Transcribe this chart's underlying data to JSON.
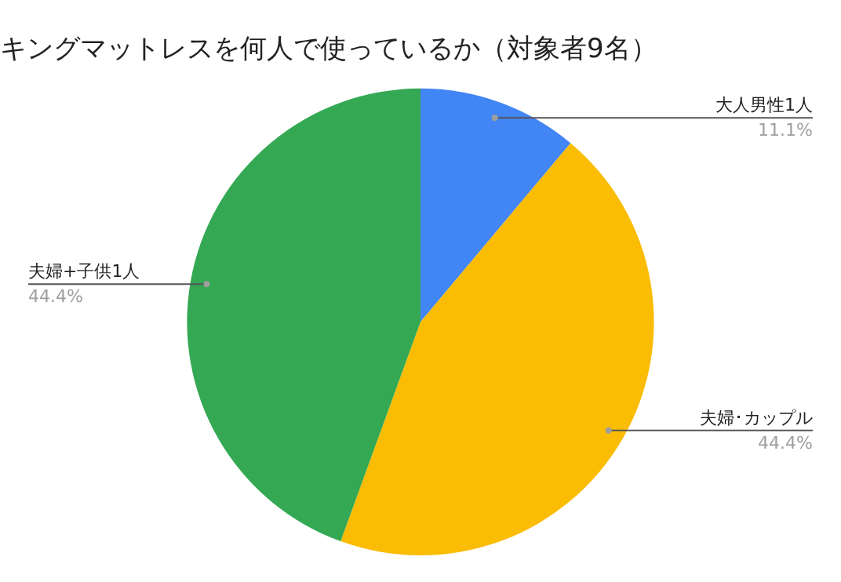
{
  "chart_data": {
    "type": "pie",
    "title": "キングマットレスを何人で使っているか（対象者9名）",
    "categories": [
      "大人男性1人",
      "夫婦･カップル",
      "夫婦+子供1人"
    ],
    "values": [
      11.1,
      44.4,
      44.4
    ],
    "value_labels": [
      "11.1%",
      "44.4%",
      "44.4%"
    ],
    "colors": [
      "#4285f4",
      "#fbbc04",
      "#34a853"
    ],
    "legend": false
  }
}
